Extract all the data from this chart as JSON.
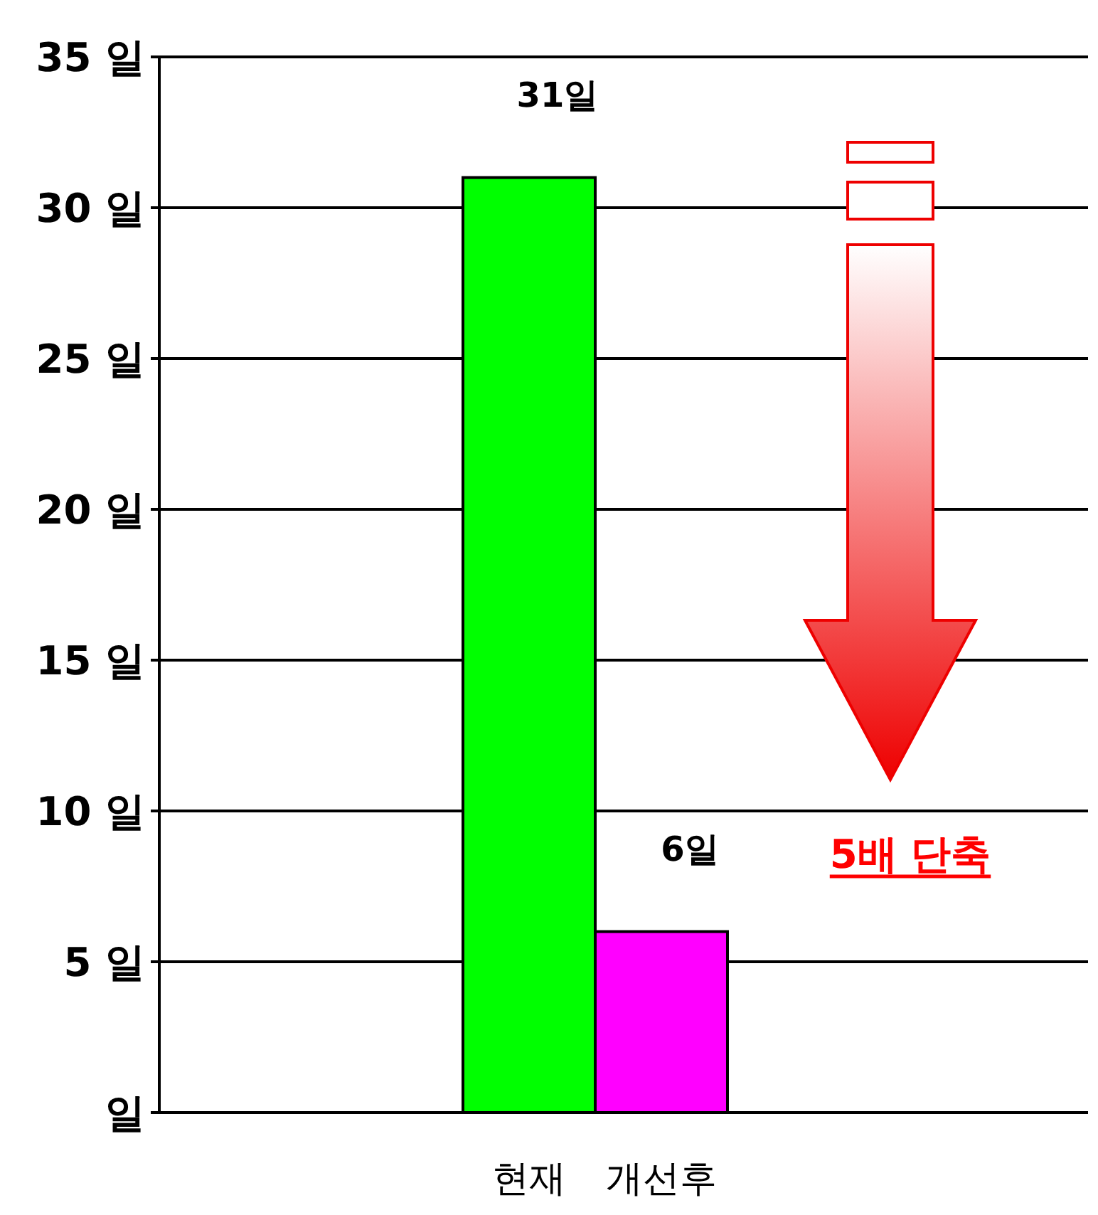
{
  "chart_data": {
    "type": "bar",
    "categories": [
      "현재",
      "개선후"
    ],
    "values": [
      31,
      6
    ],
    "colors": [
      "#00ff00",
      "#ff00ff"
    ],
    "value_labels": [
      "31일",
      "6일"
    ],
    "ylim": [
      0,
      35
    ],
    "yticks": [
      {
        "value": 0,
        "label": "일"
      },
      {
        "value": 5,
        "label": "5 일"
      },
      {
        "value": 10,
        "label": "10 일"
      },
      {
        "value": 15,
        "label": "15 일"
      },
      {
        "value": 20,
        "label": "20 일"
      },
      {
        "value": 25,
        "label": "25 일"
      },
      {
        "value": 30,
        "label": "30 일"
      },
      {
        "value": 35,
        "label": "35 일"
      }
    ],
    "grid": "y",
    "annotations": [
      "5배 단축"
    ]
  }
}
